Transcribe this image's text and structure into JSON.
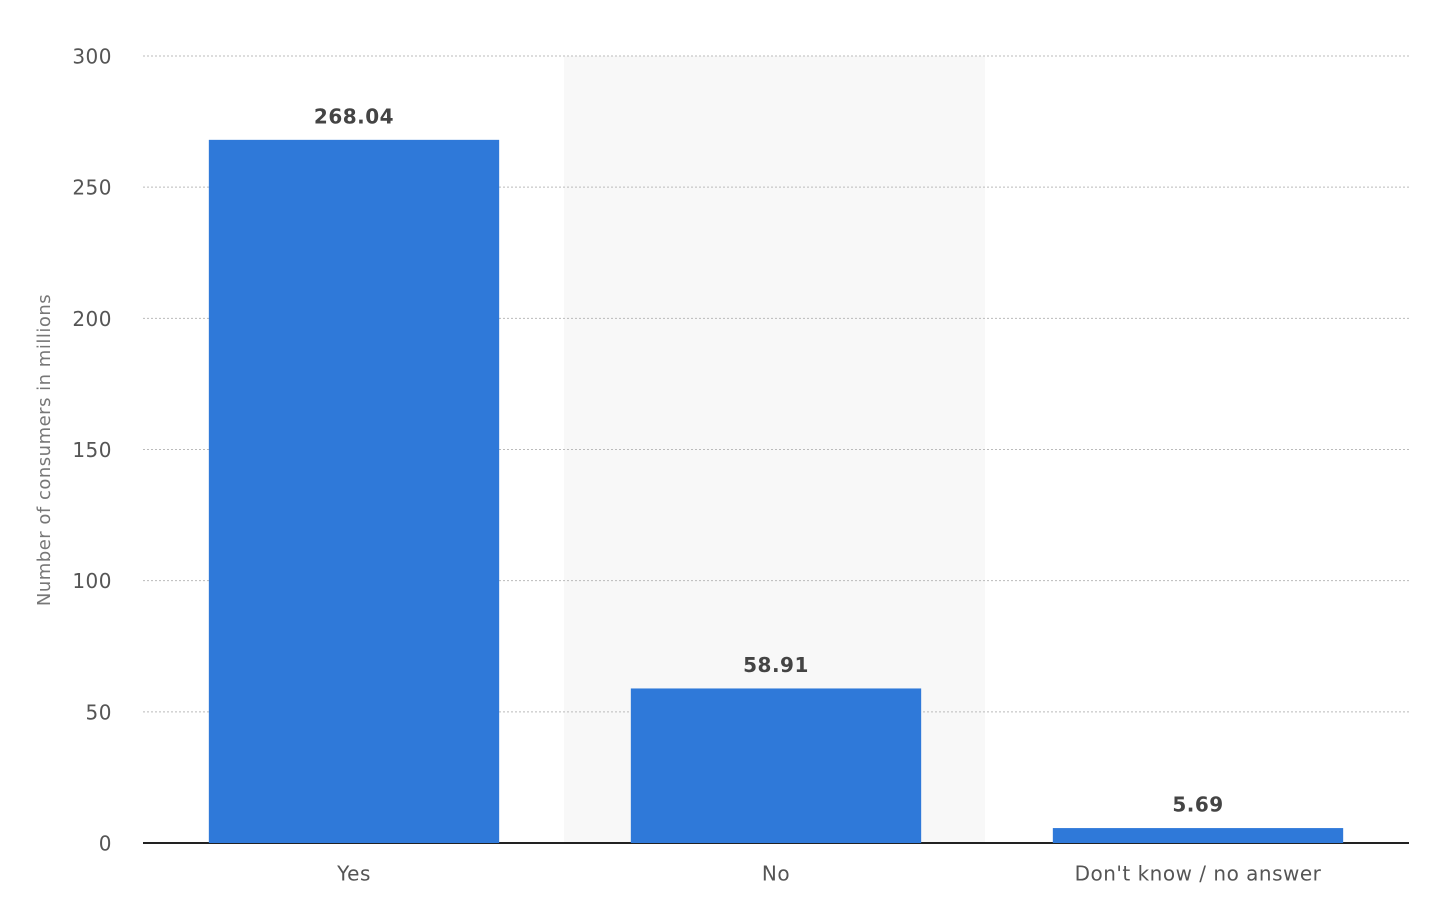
{
  "chart_data": {
    "type": "bar",
    "y_axis_label": "Number of consumers in millions",
    "categories": [
      "Yes",
      "No",
      "Don't know / no answer"
    ],
    "values": [
      268.04,
      58.91,
      5.69
    ],
    "color": "#2f79d9",
    "ylim": [
      0,
      300
    ],
    "yticks": [
      0,
      50,
      100,
      150,
      200,
      250,
      300
    ],
    "grid": true
  }
}
